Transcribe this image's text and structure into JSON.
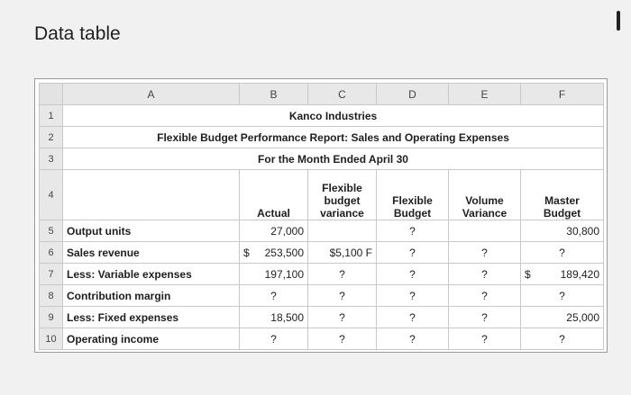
{
  "window": {
    "title": "Data table"
  },
  "columns": [
    "A",
    "B",
    "C",
    "D",
    "E",
    "F"
  ],
  "rows": {
    "r1": {
      "num": "1",
      "text": "Kanco Industries"
    },
    "r2": {
      "num": "2",
      "text": "Flexible Budget Performance Report: Sales and Operating Expenses"
    },
    "r3": {
      "num": "3",
      "text": "For the Month Ended April 30"
    },
    "r4": {
      "num": "4",
      "b": "Actual",
      "c": "Flexible budget variance",
      "d": "Flexible Budget",
      "e": "Volume Variance",
      "f": "Master Budget"
    },
    "r5": {
      "num": "5",
      "a": "Output units",
      "b": "27,000",
      "c": "",
      "d": "?",
      "e": "",
      "f": "30,800"
    },
    "r6": {
      "num": "6",
      "a": "Sales revenue",
      "b_dollar": "$",
      "b": "253,500",
      "c": "$5,100 F",
      "d": "?",
      "e": "?",
      "f": "?"
    },
    "r7": {
      "num": "7",
      "a": "Less: Variable expenses",
      "b": "197,100",
      "c": "?",
      "d": "?",
      "e": "?",
      "f_dollar": "$",
      "f": "189,420"
    },
    "r8": {
      "num": "8",
      "a": "Contribution margin",
      "b": "?",
      "c": "?",
      "d": "?",
      "e": "?",
      "f": "?"
    },
    "r9": {
      "num": "9",
      "a": "Less: Fixed expenses",
      "b": "18,500",
      "c": "?",
      "d": "?",
      "e": "?",
      "f": "25,000"
    },
    "r10": {
      "num": "10",
      "a": "Operating income",
      "b": "?",
      "c": "?",
      "d": "?",
      "e": "?",
      "f": "?"
    }
  }
}
